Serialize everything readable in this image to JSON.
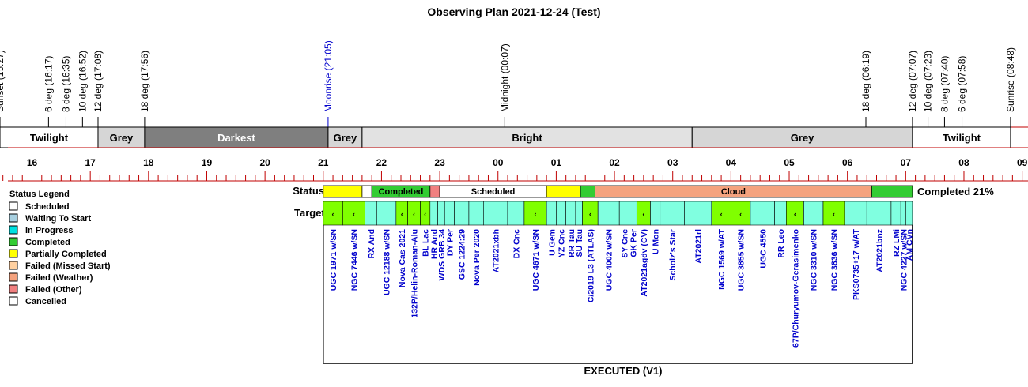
{
  "chart_data": {
    "type": "timeline",
    "title": "Observing Plan 2021-12-24 (Test)",
    "status_label": "Status",
    "targets_label": "Targets",
    "completed_summary": "Completed 21%",
    "footer": "EXECUTED (V1)",
    "colors": {
      "twilight": "#ffffff",
      "grey": "#d6d6d6",
      "darkest": "#7f7f7f",
      "bright": "#e2e2e2",
      "axis_red": "#c00000",
      "moon_blue": "#0000cc",
      "target_text": "#0000cc",
      "scheduled": "#ffffff",
      "waiting": "#a8d0e0",
      "in_progress": "#00e0e0",
      "completed": "#33cc33",
      "partial": "#ffff00",
      "failed_missed": "#ffd0a0",
      "failed_weather": "#f4a27e",
      "failed_other": "#f08080",
      "cancelled": "#ffffff",
      "target_done": "#80ff00",
      "target_pending": "#80ffe0"
    },
    "time_range": [
      "15:27",
      "09:06"
    ],
    "events": [
      {
        "label": "Sunset (15:27)",
        "time": "15:27",
        "color": "black"
      },
      {
        "label": "6 deg (16:17)",
        "time": "16:17",
        "color": "black"
      },
      {
        "label": "8 deg (16:35)",
        "time": "16:35",
        "color": "black"
      },
      {
        "label": "10 deg (16:52)",
        "time": "16:52",
        "color": "black"
      },
      {
        "label": "12 deg (17:08)",
        "time": "17:08",
        "color": "black"
      },
      {
        "label": "18 deg (17:56)",
        "time": "17:56",
        "color": "black"
      },
      {
        "label": "Moonrise (21:05)",
        "time": "21:05",
        "color": "blue"
      },
      {
        "label": "Midnight (00:07)",
        "time": "00:07",
        "color": "black"
      },
      {
        "label": "18 deg (06:19)",
        "time": "06:19",
        "color": "black"
      },
      {
        "label": "12 deg (07:07)",
        "time": "07:07",
        "color": "black"
      },
      {
        "label": "10 deg (07:23)",
        "time": "07:23",
        "color": "black"
      },
      {
        "label": "8 deg (07:40)",
        "time": "07:40",
        "color": "black"
      },
      {
        "label": "6 deg (07:58)",
        "time": "07:58",
        "color": "black"
      },
      {
        "label": "Sunrise (08:48)",
        "time": "08:48",
        "color": "black"
      }
    ],
    "bands": [
      {
        "label": "Twilight",
        "start": "15:27",
        "end": "17:08",
        "kind": "twilight"
      },
      {
        "label": "Grey",
        "start": "17:08",
        "end": "17:56",
        "kind": "grey"
      },
      {
        "label": "Darkest",
        "start": "17:56",
        "end": "21:05",
        "kind": "darkest"
      },
      {
        "label": "Grey",
        "start": "21:05",
        "end": "21:40",
        "kind": "grey"
      },
      {
        "label": "Bright",
        "start": "21:40",
        "end": "03:20",
        "kind": "bright"
      },
      {
        "label": "Grey",
        "start": "03:20",
        "end": "07:07",
        "kind": "grey"
      },
      {
        "label": "Twilight",
        "start": "07:07",
        "end": "08:48",
        "kind": "twilight"
      }
    ],
    "hour_ticks": [
      "16",
      "17",
      "18",
      "19",
      "20",
      "21",
      "22",
      "23",
      "00",
      "01",
      "02",
      "03",
      "04",
      "05",
      "06",
      "07",
      "08",
      "09"
    ],
    "status_segments": [
      {
        "label": "",
        "start": "21:00",
        "end": "21:40",
        "status": "partial"
      },
      {
        "label": "",
        "start": "21:40",
        "end": "21:50",
        "status": "scheduled"
      },
      {
        "label": "Completed",
        "start": "21:50",
        "end": "22:50",
        "status": "completed"
      },
      {
        "label": "",
        "start": "22:50",
        "end": "23:00",
        "status": "failed_other"
      },
      {
        "label": "Scheduled",
        "start": "23:00",
        "end": "00:50",
        "status": "scheduled"
      },
      {
        "label": "",
        "start": "00:50",
        "end": "01:25",
        "status": "partial"
      },
      {
        "label": "",
        "start": "01:25",
        "end": "01:40",
        "status": "completed"
      },
      {
        "label": "Cloud",
        "start": "01:40",
        "end": "06:25",
        "status": "failed_weather"
      },
      {
        "label": "",
        "start": "06:25",
        "end": "07:07",
        "status": "completed"
      }
    ],
    "targets": [
      {
        "name": "UGC 1971 w/SN",
        "start": "21:00",
        "end": "21:20",
        "done": true
      },
      {
        "name": "NGC 7446 w/SN",
        "start": "21:20",
        "end": "21:43",
        "done": true
      },
      {
        "name": "RX And",
        "start": "21:43",
        "end": "21:55",
        "done": false
      },
      {
        "name": "UGC 12188 w/SN",
        "start": "21:55",
        "end": "22:15",
        "done": false
      },
      {
        "name": "Nova Cas 2021",
        "start": "22:15",
        "end": "22:27",
        "done": true
      },
      {
        "name": "132P/Helin-Roman-Alu",
        "start": "22:27",
        "end": "22:40",
        "done": true
      },
      {
        "name": "BL Lac",
        "start": "22:40",
        "end": "22:50",
        "done": true
      },
      {
        "name": "HR And",
        "start": "22:50",
        "end": "22:58",
        "done": false
      },
      {
        "name": "WDS GRB 34",
        "start": "22:58",
        "end": "23:05",
        "done": false
      },
      {
        "name": "DY Per",
        "start": "23:05",
        "end": "23:15",
        "done": false
      },
      {
        "name": "GSC 1224:29",
        "start": "23:15",
        "end": "23:30",
        "done": false
      },
      {
        "name": "Nova Per 2020",
        "start": "23:30",
        "end": "23:45",
        "done": false
      },
      {
        "name": "AT2021xbh",
        "start": "23:45",
        "end": "00:10",
        "done": false
      },
      {
        "name": "DX Cnc",
        "start": "00:10",
        "end": "00:27",
        "done": false
      },
      {
        "name": "UGC 4671 w/SN",
        "start": "00:27",
        "end": "00:50",
        "done": true
      },
      {
        "name": "U Gem",
        "start": "00:50",
        "end": "01:00",
        "done": false
      },
      {
        "name": "YZ Cnc",
        "start": "01:00",
        "end": "01:10",
        "done": false
      },
      {
        "name": "RR Tau",
        "start": "01:10",
        "end": "01:20",
        "done": false
      },
      {
        "name": "SU Tau",
        "start": "01:20",
        "end": "01:27",
        "done": false
      },
      {
        "name": "C/2019 L3 (ATLAS)",
        "start": "01:27",
        "end": "01:43",
        "done": true
      },
      {
        "name": "UGC 4002 w/SN",
        "start": "01:43",
        "end": "02:05",
        "done": false
      },
      {
        "name": "SY Cnc",
        "start": "02:05",
        "end": "02:15",
        "done": false
      },
      {
        "name": "GK Per",
        "start": "02:15",
        "end": "02:23",
        "done": false
      },
      {
        "name": "AT2021agdv (CV)",
        "start": "02:23",
        "end": "02:37",
        "done": true
      },
      {
        "name": "U Mon",
        "start": "02:37",
        "end": "02:47",
        "done": false
      },
      {
        "name": "Scholz's Star",
        "start": "02:47",
        "end": "03:12",
        "done": false
      },
      {
        "name": "AT2021rl",
        "start": "03:12",
        "end": "03:40",
        "done": false
      },
      {
        "name": "NGC 1569 w/AT",
        "start": "03:40",
        "end": "04:00",
        "done": true
      },
      {
        "name": "UGC 3855 w/SN",
        "start": "04:00",
        "end": "04:20",
        "done": true
      },
      {
        "name": "UGC 4550",
        "start": "04:20",
        "end": "04:45",
        "done": false
      },
      {
        "name": "RR Leo",
        "start": "04:45",
        "end": "04:57",
        "done": false
      },
      {
        "name": "67P/Churyumov-Gerasimenko",
        "start": "04:57",
        "end": "05:15",
        "done": true
      },
      {
        "name": "NGC 3310 w/SN",
        "start": "05:15",
        "end": "05:35",
        "done": false
      },
      {
        "name": "NGC 3836 w/SN",
        "start": "05:35",
        "end": "05:57",
        "done": true
      },
      {
        "name": "PKS0735+17 w/AT",
        "start": "05:57",
        "end": "06:20",
        "done": false
      },
      {
        "name": "AT2021bnz",
        "start": "06:20",
        "end": "06:45",
        "done": false
      },
      {
        "name": "RZ LMi",
        "start": "06:45",
        "end": "06:55",
        "done": false
      },
      {
        "name": "NGC 4227 w/SN",
        "start": "06:55",
        "end": "07:00",
        "done": false
      },
      {
        "name": "AM CVn",
        "start": "07:00",
        "end": "07:07",
        "done": false
      }
    ],
    "legend": {
      "title": "Status Legend",
      "items": [
        {
          "label": "Scheduled",
          "status": "scheduled"
        },
        {
          "label": "Waiting To Start",
          "status": "waiting"
        },
        {
          "label": "In Progress",
          "status": "in_progress"
        },
        {
          "label": "Completed",
          "status": "completed"
        },
        {
          "label": "Partially Completed",
          "status": "partial"
        },
        {
          "label": "Failed (Missed Start)",
          "status": "failed_missed"
        },
        {
          "label": "Failed (Weather)",
          "status": "failed_weather"
        },
        {
          "label": "Failed (Other)",
          "status": "failed_other"
        },
        {
          "label": "Cancelled",
          "status": "cancelled"
        }
      ]
    }
  }
}
